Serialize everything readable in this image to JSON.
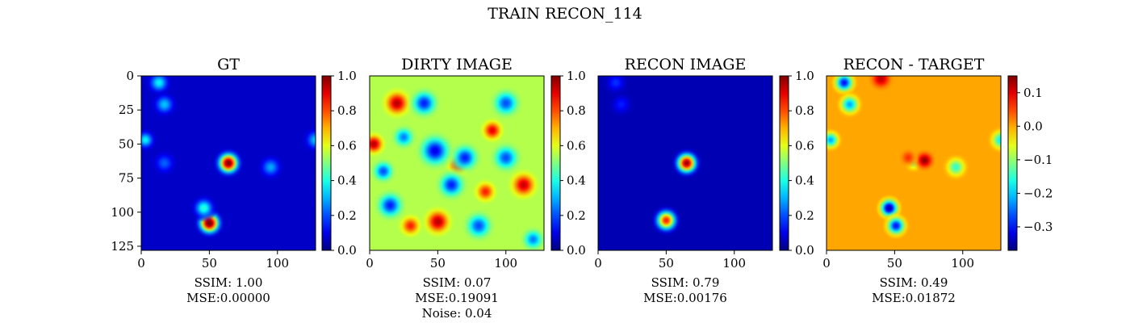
{
  "figure": {
    "suptitle": "TRAIN RECON_114"
  },
  "chart_data": [
    {
      "type": "heatmap",
      "title": "GT",
      "colormap": "jet",
      "xlim": [
        0,
        128
      ],
      "ylim": [
        128,
        0
      ],
      "xticks": [
        "0",
        "50",
        "100"
      ],
      "yticks": [
        "0",
        "25",
        "50",
        "75",
        "100",
        "125"
      ],
      "colorbar": {
        "range": [
          0.0,
          1.0
        ],
        "ticks": [
          "0.0",
          "0.2",
          "0.4",
          "0.6",
          "0.8",
          "1.0"
        ]
      },
      "caption": [
        "SSIM: 1.00",
        "MSE:0.00000"
      ],
      "base_level": 0.07,
      "blobs": [
        {
          "x": 64,
          "y": 64,
          "value": 0.95,
          "width": 4.5
        },
        {
          "x": 50,
          "y": 108,
          "value": 0.98,
          "width": 4.5
        },
        {
          "x": 46,
          "y": 97,
          "value": 0.35,
          "width": 4
        },
        {
          "x": 13,
          "y": 5,
          "value": 0.3,
          "width": 4
        },
        {
          "x": 17,
          "y": 21,
          "value": 0.25,
          "width": 4
        },
        {
          "x": 3,
          "y": 47,
          "value": 0.3,
          "width": 3.5
        },
        {
          "x": 95,
          "y": 67,
          "value": 0.22,
          "width": 4
        },
        {
          "x": 128,
          "y": 47,
          "value": 0.25,
          "width": 4
        },
        {
          "x": 17,
          "y": 64,
          "value": 0.15,
          "width": 4
        }
      ]
    },
    {
      "type": "heatmap",
      "title": "DIRTY IMAGE",
      "colormap": "jet",
      "xlim": [
        0,
        128
      ],
      "ylim": [
        128,
        0
      ],
      "xticks": [
        "0",
        "50",
        "100"
      ],
      "yticks": [],
      "colorbar": {
        "range": [
          0.0,
          1.0
        ],
        "ticks": [
          "0.0",
          "0.2",
          "0.4",
          "0.6",
          "0.8",
          "1.0"
        ]
      },
      "caption": [
        "SSIM: 0.07",
        "MSE:0.19091",
        "Noise: 0.04"
      ],
      "base_level": 0.55,
      "blobs": [
        {
          "x": 65,
          "y": 65,
          "value": 0.4,
          "width": 4
        },
        {
          "x": 50,
          "y": 107,
          "value": 0.4,
          "width": 5
        },
        {
          "x": 20,
          "y": 20,
          "value": 0.4,
          "width": 5
        },
        {
          "x": 113,
          "y": 80,
          "value": 0.38,
          "width": 5
        },
        {
          "x": 90,
          "y": 40,
          "value": 0.35,
          "width": 4
        },
        {
          "x": 3,
          "y": 50,
          "value": 0.4,
          "width": 4
        },
        {
          "x": 30,
          "y": 110,
          "value": 0.3,
          "width": 4
        },
        {
          "x": 48,
          "y": 55,
          "value": -0.45,
          "width": 6
        },
        {
          "x": 70,
          "y": 60,
          "value": -0.4,
          "width": 5
        },
        {
          "x": 40,
          "y": 20,
          "value": -0.4,
          "width": 5
        },
        {
          "x": 100,
          "y": 60,
          "value": -0.35,
          "width": 5
        },
        {
          "x": 60,
          "y": 80,
          "value": -0.4,
          "width": 5
        },
        {
          "x": 15,
          "y": 95,
          "value": -0.4,
          "width": 5
        },
        {
          "x": 80,
          "y": 110,
          "value": -0.35,
          "width": 5
        },
        {
          "x": 100,
          "y": 20,
          "value": -0.35,
          "width": 5
        },
        {
          "x": 10,
          "y": 70,
          "value": -0.35,
          "width": 4
        },
        {
          "x": 120,
          "y": 120,
          "value": -0.3,
          "width": 4
        },
        {
          "x": 25,
          "y": 45,
          "value": -0.3,
          "width": 4
        },
        {
          "x": 85,
          "y": 85,
          "value": 0.3,
          "width": 4
        }
      ]
    },
    {
      "type": "heatmap",
      "title": "RECON IMAGE",
      "colormap": "jet",
      "xlim": [
        0,
        128
      ],
      "ylim": [
        128,
        0
      ],
      "xticks": [
        "0",
        "50",
        "100"
      ],
      "yticks": [],
      "colorbar": {
        "range": [
          0.0,
          1.0
        ],
        "ticks": [
          "0.0",
          "0.2",
          "0.4",
          "0.6",
          "0.8",
          "1.0"
        ]
      },
      "caption": [
        "SSIM: 0.79",
        "MSE:0.00176"
      ],
      "base_level": 0.05,
      "blobs": [
        {
          "x": 65,
          "y": 64,
          "value": 0.93,
          "width": 4.5
        },
        {
          "x": 50,
          "y": 106,
          "value": 0.8,
          "width": 4.5
        },
        {
          "x": 13,
          "y": 5,
          "value": 0.12,
          "width": 4
        },
        {
          "x": 17,
          "y": 21,
          "value": 0.1,
          "width": 4
        }
      ]
    },
    {
      "type": "heatmap",
      "title": "RECON - TARGET",
      "colormap": "jet",
      "xlim": [
        0,
        128
      ],
      "ylim": [
        128,
        0
      ],
      "xticks": [
        "0",
        "50",
        "100"
      ],
      "yticks": [],
      "colorbar": {
        "range": [
          -0.37,
          0.15
        ],
        "ticks": [
          "0.1",
          "0.0",
          "−0.1",
          "−0.2",
          "−0.3"
        ],
        "tick_values": [
          0.1,
          0.0,
          -0.1,
          -0.2,
          -0.3
        ]
      },
      "caption": [
        "SSIM: 0.49",
        "MSE:0.01872"
      ],
      "base_level": 0.0,
      "blobs": [
        {
          "x": 13,
          "y": 5,
          "value": -0.3,
          "width": 4
        },
        {
          "x": 17,
          "y": 21,
          "value": -0.22,
          "width": 4
        },
        {
          "x": 3,
          "y": 47,
          "value": -0.22,
          "width": 3.5
        },
        {
          "x": 46,
          "y": 97,
          "value": -0.35,
          "width": 4
        },
        {
          "x": 51,
          "y": 110,
          "value": -0.3,
          "width": 4
        },
        {
          "x": 95,
          "y": 67,
          "value": -0.15,
          "width": 4
        },
        {
          "x": 128,
          "y": 47,
          "value": -0.18,
          "width": 4
        },
        {
          "x": 64,
          "y": 64,
          "value": -0.1,
          "width": 3
        },
        {
          "x": 72,
          "y": 62,
          "value": 0.14,
          "width": 3.5
        },
        {
          "x": 40,
          "y": 2,
          "value": 0.12,
          "width": 4
        },
        {
          "x": 60,
          "y": 60,
          "value": 0.06,
          "width": 3
        }
      ]
    }
  ]
}
